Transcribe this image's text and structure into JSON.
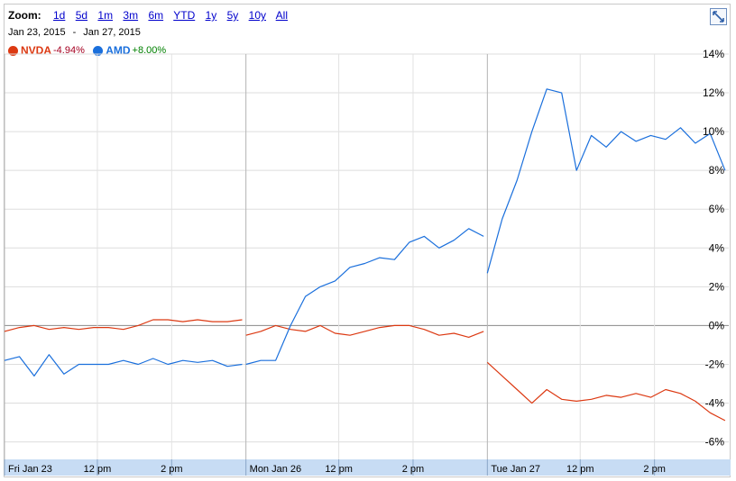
{
  "zoom": {
    "label": "Zoom:",
    "options": [
      "1d",
      "5d",
      "1m",
      "3m",
      "6m",
      "YTD",
      "1y",
      "5y",
      "10y",
      "All"
    ]
  },
  "range": {
    "start": "Jan 23, 2015",
    "separator": "-",
    "end": "Jan 27, 2015"
  },
  "legend": [
    {
      "name": "NVDA",
      "change": "-4.94%",
      "color": "#dc3912",
      "change_color": "#a50021"
    },
    {
      "name": "AMD",
      "change": "+8.00%",
      "color": "#1a6fdc",
      "change_color": "#008000"
    }
  ],
  "chart_data": {
    "type": "line",
    "ylabel": "",
    "xlabel": "",
    "ylim": [
      -6.9,
      14
    ],
    "y_ticks": [
      "14%",
      "12%",
      "10%",
      "8%",
      "6%",
      "4%",
      "2%",
      "0%",
      "-2%",
      "-4%",
      "-6%"
    ],
    "y_tick_values": [
      14,
      12,
      10,
      8,
      6,
      4,
      2,
      0,
      -2,
      -4,
      -6
    ],
    "x_tick_labels": [
      "Fri Jan 23",
      "12 pm",
      "2 pm",
      "Mon Jan 26",
      "12 pm",
      "2 pm",
      "Tue Jan 27",
      "12 pm",
      "2 pm"
    ],
    "x_tick_positions": [
      0,
      2.5,
      4.5,
      6.5,
      9,
      11,
      13,
      15.5,
      17.5
    ],
    "xlim": [
      0,
      19.5
    ],
    "grid": true,
    "series": [
      {
        "name": "NVDA",
        "color": "#dc3912",
        "segments": [
          {
            "x": [
              0,
              0.4,
              0.8,
              1.2,
              1.6,
              2.0,
              2.4,
              2.8,
              3.2,
              3.6,
              4.0,
              4.4,
              4.8,
              5.2,
              5.6,
              6.0,
              6.4
            ],
            "y": [
              -0.3,
              -0.1,
              0.0,
              -0.2,
              -0.1,
              -0.2,
              -0.1,
              -0.1,
              -0.2,
              0.0,
              0.3,
              0.3,
              0.2,
              0.3,
              0.2,
              0.2,
              0.3
            ]
          },
          {
            "x": [
              6.5,
              6.9,
              7.3,
              7.7,
              8.1,
              8.5,
              8.9,
              9.3,
              9.7,
              10.1,
              10.5,
              10.9,
              11.3,
              11.7,
              12.1,
              12.5,
              12.9
            ],
            "y": [
              -0.5,
              -0.3,
              0.0,
              -0.2,
              -0.3,
              0.0,
              -0.4,
              -0.5,
              -0.3,
              -0.1,
              0.0,
              0.0,
              -0.2,
              -0.5,
              -0.4,
              -0.6,
              -0.3
            ]
          },
          {
            "x": [
              13.0,
              13.4,
              13.8,
              14.2,
              14.6,
              15.0,
              15.4,
              15.8,
              16.2,
              16.6,
              17.0,
              17.4,
              17.8,
              18.2,
              18.6,
              19.0,
              19.4
            ],
            "y": [
              -1.9,
              -2.6,
              -3.3,
              -4.0,
              -3.3,
              -3.8,
              -3.9,
              -3.8,
              -3.6,
              -3.7,
              -3.5,
              -3.7,
              -3.3,
              -3.5,
              -3.9,
              -4.5,
              -4.9
            ]
          }
        ]
      },
      {
        "name": "AMD",
        "color": "#1a6fdc",
        "segments": [
          {
            "x": [
              0,
              0.4,
              0.8,
              1.2,
              1.6,
              2.0,
              2.4,
              2.8,
              3.2,
              3.6,
              4.0,
              4.4,
              4.8,
              5.2,
              5.6,
              6.0,
              6.4
            ],
            "y": [
              -1.8,
              -1.6,
              -2.6,
              -1.5,
              -2.5,
              -2.0,
              -2.0,
              -2.0,
              -1.8,
              -2.0,
              -1.7,
              -2.0,
              -1.8,
              -1.9,
              -1.8,
              -2.1,
              -2.0
            ]
          },
          {
            "x": [
              6.5,
              6.9,
              7.3,
              7.7,
              8.1,
              8.5,
              8.9,
              9.3,
              9.7,
              10.1,
              10.5,
              10.9,
              11.3,
              11.7,
              12.1,
              12.5,
              12.9
            ],
            "y": [
              -2.0,
              -1.8,
              -1.8,
              0.0,
              1.5,
              2.0,
              2.3,
              3.0,
              3.2,
              3.5,
              3.4,
              4.3,
              4.6,
              4.0,
              4.4,
              5.0,
              4.6
            ]
          },
          {
            "x": [
              13.0,
              13.4,
              13.8,
              14.2,
              14.6,
              15.0,
              15.4,
              15.8,
              16.2,
              16.6,
              17.0,
              17.4,
              17.8,
              18.2,
              18.6,
              19.0,
              19.4
            ],
            "y": [
              2.7,
              5.5,
              7.5,
              10.0,
              12.2,
              12.0,
              8.0,
              9.8,
              9.2,
              10.0,
              9.5,
              9.8,
              9.6,
              10.2,
              9.4,
              9.9,
              8.0
            ]
          }
        ]
      }
    ]
  }
}
